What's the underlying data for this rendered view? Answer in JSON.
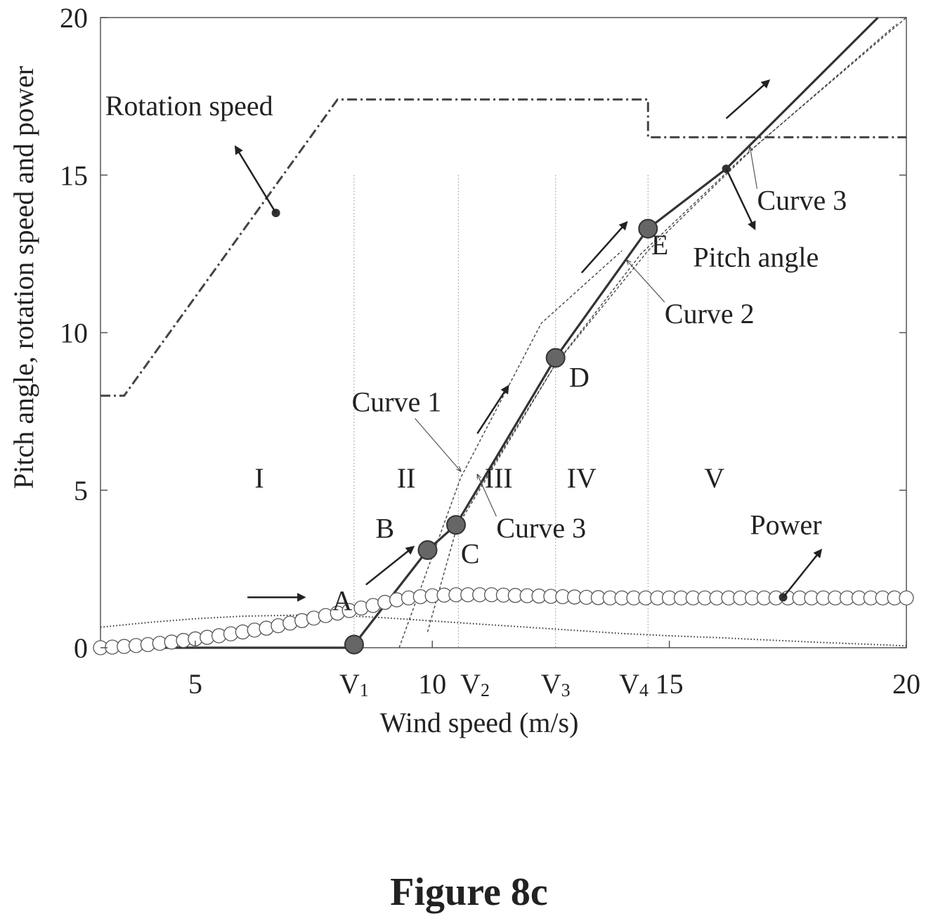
{
  "figure_caption": "Figure 8c",
  "chart_data": {
    "type": "line",
    "title": "",
    "xlabel": "Wind speed (m/s)",
    "ylabel": "Pitch angle, rotation speed and power",
    "xlim": [
      3,
      20
    ],
    "ylim": [
      0,
      20
    ],
    "x_ticks": [
      {
        "x": 5,
        "label": "5"
      },
      {
        "x": 10,
        "label": "10"
      },
      {
        "x": 15,
        "label": "15"
      },
      {
        "x": 20,
        "label": "20"
      }
    ],
    "x_marker_labels": [
      {
        "x": 8.35,
        "label": "V",
        "sub": "1"
      },
      {
        "x": 10.9,
        "label": "V",
        "sub": "2"
      },
      {
        "x": 12.6,
        "label": "V",
        "sub": "3"
      },
      {
        "x": 14.25,
        "label": "V",
        "sub": "4"
      }
    ],
    "y_ticks": [
      0,
      5,
      10,
      15,
      20
    ],
    "region_boundaries": [
      8.35,
      10.55,
      12.6,
      14.55
    ],
    "regions": [
      {
        "label": "I",
        "x": 6.35,
        "y": 5.4
      },
      {
        "label": "II",
        "x": 9.45,
        "y": 5.4
      },
      {
        "label": "III",
        "x": 11.4,
        "y": 5.4
      },
      {
        "label": "IV",
        "x": 13.15,
        "y": 5.4
      },
      {
        "label": "V",
        "x": 15.95,
        "y": 5.4
      }
    ],
    "grid": false,
    "legend": "none",
    "series": [
      {
        "name": "Rotation speed",
        "style": "dash-dot",
        "x": [
          3.0,
          3.5,
          8.0,
          14.55,
          14.55,
          20.0
        ],
        "y": [
          8.0,
          8.0,
          17.4,
          17.4,
          16.2,
          16.2
        ]
      },
      {
        "name": "Pitch angle",
        "style": "solid",
        "x": [
          3.0,
          8.3,
          8.35,
          9.9,
          10.5,
          12.6,
          14.55,
          16.2,
          19.4
        ],
        "y": [
          0.0,
          0.0,
          0.1,
          3.1,
          3.9,
          9.2,
          13.3,
          15.2,
          20.0
        ]
      },
      {
        "name": "Curve 1",
        "style": "dotted",
        "x": [
          9.3,
          10.6,
          12.3,
          14.0
        ],
        "y": [
          0.0,
          5.4,
          10.3,
          12.6
        ]
      },
      {
        "name": "Curve 2",
        "style": "dotted",
        "x": [
          9.9,
          10.55,
          12.6,
          14.4,
          16.5,
          19.8
        ],
        "y": [
          0.5,
          4.0,
          9.0,
          12.5,
          15.5,
          19.8
        ]
      },
      {
        "name": "Curve 3",
        "style": "dotted",
        "x": [
          10.55,
          12.6,
          14.55,
          16.8,
          20.0
        ],
        "y": [
          3.9,
          9.0,
          12.6,
          15.9,
          20.0
        ]
      },
      {
        "name": "Power",
        "style": "circles",
        "x": [
          3.0,
          3.25,
          3.5,
          3.75,
          4.0,
          4.25,
          4.5,
          4.75,
          5.0,
          5.25,
          5.5,
          5.75,
          6.0,
          6.25,
          6.5,
          6.75,
          7.0,
          7.25,
          7.5,
          7.75,
          8.0,
          8.25,
          8.5,
          8.75,
          9.0,
          9.25,
          9.5,
          9.75,
          10.0,
          10.25,
          10.5,
          10.75,
          11.0,
          11.25,
          11.5,
          11.75,
          12.0,
          12.25,
          12.5,
          12.75,
          13.0,
          13.25,
          13.5,
          13.75,
          14.0,
          14.25,
          14.5,
          14.75,
          15.0,
          15.25,
          15.5,
          15.75,
          16.0,
          16.25,
          16.5,
          16.75,
          17.0,
          17.25,
          17.5,
          17.75,
          18.0,
          18.25,
          18.5,
          18.75,
          19.0,
          19.25,
          19.5,
          19.75,
          20.0
        ],
        "y": [
          0.0,
          0.02,
          0.04,
          0.07,
          0.1,
          0.14,
          0.18,
          0.23,
          0.28,
          0.33,
          0.38,
          0.44,
          0.5,
          0.56,
          0.62,
          0.7,
          0.78,
          0.86,
          0.94,
          1.02,
          1.1,
          1.18,
          1.26,
          1.34,
          1.44,
          1.52,
          1.58,
          1.62,
          1.65,
          1.67,
          1.68,
          1.68,
          1.68,
          1.68,
          1.67,
          1.66,
          1.65,
          1.64,
          1.63,
          1.62,
          1.61,
          1.6,
          1.59,
          1.58,
          1.58,
          1.58,
          1.58,
          1.58,
          1.58,
          1.58,
          1.58,
          1.58,
          1.58,
          1.58,
          1.58,
          1.58,
          1.58,
          1.58,
          1.58,
          1.58,
          1.58,
          1.58,
          1.58,
          1.58,
          1.58,
          1.58,
          1.58,
          1.58,
          1.58
        ]
      },
      {
        "name": "",
        "style": "fine-dotted",
        "x": [
          3.0,
          4.0,
          5.0,
          6.0,
          7.0,
          7.5,
          8.0,
          9.0,
          10.0,
          11.0,
          12.0,
          13.0,
          14.0,
          15.0,
          16.0,
          17.0,
          18.0,
          19.0,
          20.0
        ],
        "y": [
          0.65,
          0.8,
          0.92,
          1.0,
          1.03,
          1.04,
          1.03,
          0.95,
          0.85,
          0.75,
          0.65,
          0.55,
          0.45,
          0.38,
          0.32,
          0.25,
          0.18,
          0.12,
          0.06
        ]
      }
    ],
    "key_points": [
      {
        "label": "A",
        "x": 8.35,
        "y": 0.1
      },
      {
        "label": "B",
        "x": 9.9,
        "y": 3.1
      },
      {
        "label": "C",
        "x": 10.5,
        "y": 3.9
      },
      {
        "label": "D",
        "x": 12.6,
        "y": 9.2
      },
      {
        "label": "E",
        "x": 14.55,
        "y": 13.3
      }
    ],
    "point_labels": [
      {
        "label": "A",
        "x": 8.1,
        "y": 1.5
      },
      {
        "label": "B",
        "x": 9.0,
        "y": 3.8
      },
      {
        "label": "C",
        "x": 10.8,
        "y": 3.0
      },
      {
        "label": "D",
        "x": 13.1,
        "y": 8.6
      },
      {
        "label": "E",
        "x": 14.8,
        "y": 12.8
      }
    ],
    "annotations": [
      {
        "text": "Rotation speed",
        "x": 3.1,
        "y": 16.9,
        "target": [
          6.7,
          13.8
        ],
        "head": [
          5.85,
          15.9
        ],
        "arrow": "outward"
      },
      {
        "text": "Pitch angle",
        "x": 15.5,
        "y": 12.1,
        "target": [
          16.2,
          15.2
        ],
        "head": [
          16.8,
          13.3
        ],
        "arrow": "outward"
      },
      {
        "text": "Power",
        "x": 16.7,
        "y": 3.6,
        "target": [
          17.4,
          1.6
        ],
        "head": [
          18.2,
          3.1
        ],
        "arrow": "outward"
      },
      {
        "text": "Curve 1",
        "x": 8.3,
        "y": 7.5,
        "target": [
          10.6,
          5.6
        ],
        "arrow": "pointer"
      },
      {
        "text": "Curve 2",
        "x": 14.9,
        "y": 10.3,
        "target": [
          14.1,
          12.3
        ],
        "arrow": "pointer"
      },
      {
        "text": "Curve 3",
        "x": 11.35,
        "y": 3.5,
        "target": [
          10.95,
          5.5
        ],
        "arrow": "pointer"
      },
      {
        "text": "Curve 3",
        "x": 16.85,
        "y": 13.9,
        "target": [
          16.7,
          15.9
        ],
        "arrow": "pointer"
      }
    ],
    "direction_arrows": [
      {
        "from": [
          6.1,
          1.6
        ],
        "to": [
          7.3,
          1.6
        ]
      },
      {
        "from": [
          8.6,
          2.0
        ],
        "to": [
          9.6,
          3.2
        ]
      },
      {
        "from": [
          10.95,
          6.8
        ],
        "to": [
          11.6,
          8.3
        ]
      },
      {
        "from": [
          13.15,
          11.9
        ],
        "to": [
          14.1,
          13.5
        ]
      },
      {
        "from": [
          16.2,
          16.8
        ],
        "to": [
          17.1,
          18.0
        ]
      }
    ]
  }
}
